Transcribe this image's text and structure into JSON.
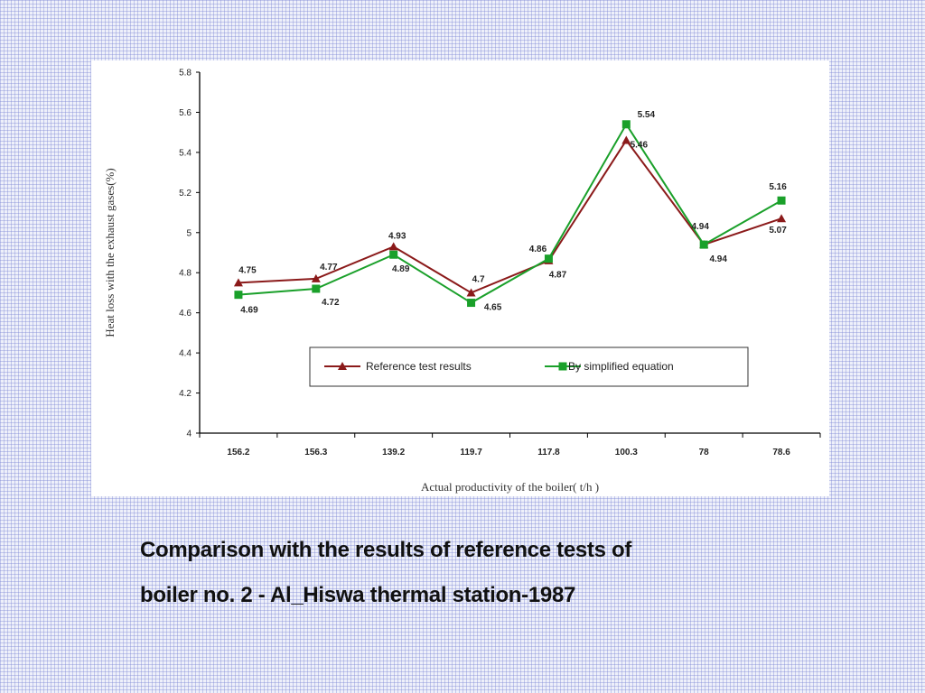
{
  "caption": {
    "line1": "Comparison with the results of reference tests of",
    "line2": "boiler no. 2 - Al_Hiswa thermal station-1987"
  },
  "colors": {
    "reference": "#8b1a1a",
    "simplified": "#1aa02a",
    "axis": "#000000",
    "background": "#eef0fa"
  },
  "chart_data": {
    "type": "line",
    "title": "",
    "xlabel": "Actual productivity of the boiler( t/h )",
    "ylabel": "Heat loss with the exhaust gases(%)",
    "categories": [
      "156.2",
      "156.3",
      "139.2",
      "119.7",
      "117.8",
      "100.3",
      "78",
      "78.6"
    ],
    "ylim": [
      4,
      5.8
    ],
    "yticks": [
      4,
      4.2,
      4.4,
      4.6,
      4.8,
      5,
      5.2,
      5.4,
      5.6,
      5.8
    ],
    "ytick_labels": [
      "4",
      "4.2",
      "4.4",
      "4.6",
      "4.8",
      "5",
      "5.2",
      "5.4",
      "5.6",
      "5.8"
    ],
    "grid": false,
    "legend_position": "bottom-right",
    "series": [
      {
        "name": "Reference test results",
        "marker": "triangle",
        "color": "#8b1a1a",
        "values": [
          4.75,
          4.77,
          4.93,
          4.7,
          4.86,
          5.46,
          4.94,
          5.07
        ],
        "labels": [
          "4.75",
          "4.77",
          "4.93",
          "4.7",
          "4.86",
          "5.46",
          "4.94",
          "5.07"
        ]
      },
      {
        "name": "By simplified  equation",
        "marker": "square",
        "color": "#1aa02a",
        "values": [
          4.69,
          4.72,
          4.89,
          4.65,
          4.87,
          5.54,
          4.94,
          5.16
        ],
        "labels": [
          "4.69",
          "4.72",
          "4.89",
          "4.65",
          "4.87",
          "5.54",
          "4.94",
          "5.16"
        ]
      }
    ]
  }
}
